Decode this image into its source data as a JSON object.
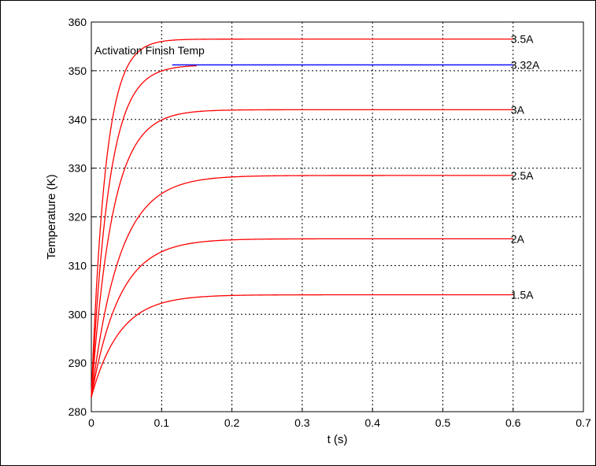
{
  "chart_data": {
    "type": "line",
    "title": "",
    "xlabel": "t (s)",
    "ylabel": "Temperature (K)",
    "xlim": [
      0,
      0.7
    ],
    "ylim": [
      280,
      360
    ],
    "x_ticks": [
      "0",
      "0.1",
      "0.2",
      "0.3",
      "0.4",
      "0.5",
      "0.6",
      "0.7"
    ],
    "y_ticks": [
      "280",
      "290",
      "300",
      "310",
      "320",
      "330",
      "340",
      "350",
      "360"
    ],
    "grid": true,
    "line_colors": {
      "curves": "#ff0000",
      "threshold": "#0000ff"
    },
    "series": [
      {
        "name": "1.5A",
        "t_end": 0.6,
        "start": 283,
        "final": 304,
        "tau": 0.04
      },
      {
        "name": "2A",
        "t_end": 0.6,
        "start": 283,
        "final": 315.5,
        "tau": 0.04
      },
      {
        "name": "2.5A",
        "t_end": 0.6,
        "start": 283,
        "final": 328.5,
        "tau": 0.04
      },
      {
        "name": "3A",
        "t_end": 0.6,
        "start": 283,
        "final": 342,
        "tau": 0.03
      },
      {
        "name": "3.32A",
        "t_end": 0.15,
        "start": 283,
        "final": 351.2,
        "tau": 0.025
      },
      {
        "name": "3.5A",
        "t_end": 0.6,
        "start": 283,
        "final": 356.5,
        "tau": 0.02
      }
    ],
    "threshold": {
      "label": "Activation Finish Temp",
      "value": 351.2,
      "x_start": 0.115,
      "x_end": 0.6
    }
  }
}
